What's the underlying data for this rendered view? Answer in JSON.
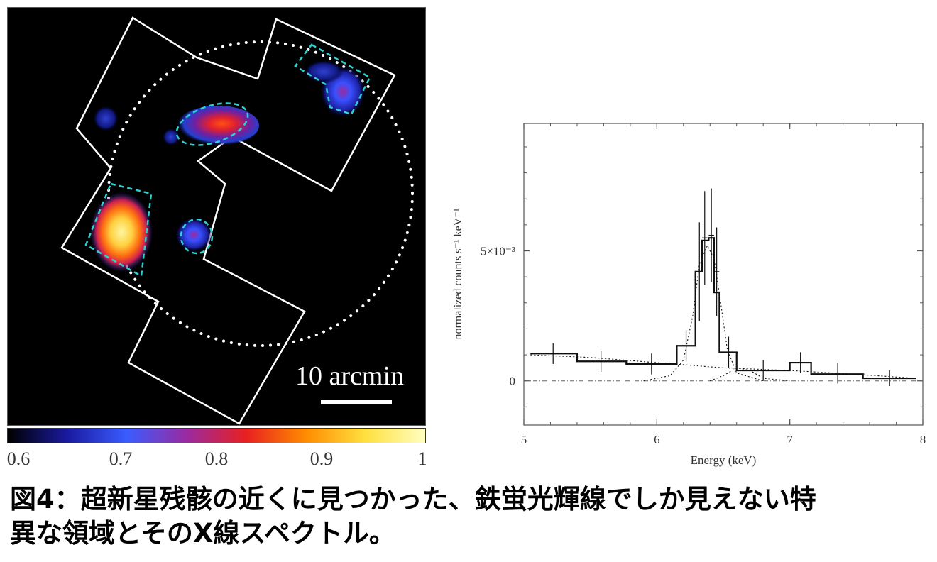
{
  "image_panel": {
    "scale_label": "10 arcmin",
    "colorbar": {
      "ticks": [
        "0.6",
        "0.7",
        "0.8",
        "0.9",
        "1"
      ],
      "colors": [
        "#000000",
        "#1a1aa0",
        "#3a5cff",
        "#9a2aa0",
        "#e82020",
        "#ff8c00",
        "#ffe040",
        "#ffffc0"
      ]
    },
    "region_color": "#2fd0d0",
    "outline_color": "#ffffff"
  },
  "chart_data": {
    "type": "line",
    "xlabel": "Energy (keV)",
    "ylabel": "normalized counts s⁻¹ keV⁻¹",
    "xlim": [
      5,
      8
    ],
    "ylim": [
      -0.0017,
      0.0099
    ],
    "x_ticks": [
      "5",
      "6",
      "7",
      "8"
    ],
    "y_ticks": [
      "0",
      "5×10⁻³"
    ],
    "y_tick_values": [
      0,
      0.005
    ],
    "grid": false,
    "series": [
      {
        "style": "data-with-errors",
        "points": [
          {
            "x": 5.22,
            "xerr": 0.17,
            "y": 0.00105,
            "yerr": 0.0004
          },
          {
            "x": 5.58,
            "xerr": 0.19,
            "y": 0.00075,
            "yerr": 0.0004
          },
          {
            "x": 5.96,
            "xerr": 0.19,
            "y": 0.00065,
            "yerr": 0.0004
          },
          {
            "x": 6.22,
            "xerr": 0.07,
            "y": 0.00135,
            "yerr": 0.0006
          },
          {
            "x": 6.32,
            "xerr": 0.03,
            "y": 0.0042,
            "yerr": 0.0019
          },
          {
            "x": 6.36,
            "xerr": 0.02,
            "y": 0.0055,
            "yerr": 0.0018
          },
          {
            "x": 6.41,
            "xerr": 0.02,
            "y": 0.0056,
            "yerr": 0.0018
          },
          {
            "x": 6.45,
            "xerr": 0.02,
            "y": 0.0042,
            "yerr": 0.0017
          },
          {
            "x": 6.54,
            "xerr": 0.07,
            "y": 0.0011,
            "yerr": 0.0006
          },
          {
            "x": 6.8,
            "xerr": 0.2,
            "y": 0.0004,
            "yerr": 0.0004
          },
          {
            "x": 7.08,
            "xerr": 0.08,
            "y": 0.0007,
            "yerr": 0.0004
          },
          {
            "x": 7.36,
            "xerr": 0.2,
            "y": 0.0003,
            "yerr": 0.0004
          },
          {
            "x": 7.75,
            "xerr": 0.2,
            "y": 0.0001,
            "yerr": 0.0003
          }
        ]
      },
      {
        "style": "model-total-step",
        "points": [
          [
            5.05,
            0.00105
          ],
          [
            5.4,
            0.00105
          ],
          [
            5.4,
            0.00075
          ],
          [
            5.77,
            0.00075
          ],
          [
            5.77,
            0.00065
          ],
          [
            6.15,
            0.00065
          ],
          [
            6.15,
            0.00135
          ],
          [
            6.29,
            0.00135
          ],
          [
            6.29,
            0.0042
          ],
          [
            6.34,
            0.0042
          ],
          [
            6.34,
            0.0054
          ],
          [
            6.39,
            0.0054
          ],
          [
            6.39,
            0.0055
          ],
          [
            6.43,
            0.0055
          ],
          [
            6.43,
            0.0034
          ],
          [
            6.47,
            0.0034
          ],
          [
            6.47,
            0.0011
          ],
          [
            6.6,
            0.0011
          ],
          [
            6.6,
            0.0004
          ],
          [
            7.0,
            0.0004
          ],
          [
            7.0,
            0.0007
          ],
          [
            7.16,
            0.0007
          ],
          [
            7.16,
            0.00025
          ],
          [
            7.55,
            0.00025
          ],
          [
            7.55,
            0.0001
          ],
          [
            7.95,
            0.0001
          ]
        ]
      },
      {
        "style": "model-continuum-dotted",
        "points": [
          [
            5.05,
            0.001
          ],
          [
            5.5,
            0.0009
          ],
          [
            6.0,
            0.0007
          ],
          [
            6.5,
            0.0005
          ],
          [
            7.0,
            0.0004
          ],
          [
            7.5,
            0.00025
          ],
          [
            7.95,
            0.0001
          ]
        ]
      },
      {
        "style": "model-line-dotted",
        "points": [
          [
            5.9,
            0
          ],
          [
            6.1,
            0.0002
          ],
          [
            6.2,
            0.0008
          ],
          [
            6.27,
            0.0025
          ],
          [
            6.32,
            0.0045
          ],
          [
            6.38,
            0.0052
          ],
          [
            6.43,
            0.0047
          ],
          [
            6.48,
            0.003
          ],
          [
            6.53,
            0.0012
          ],
          [
            6.6,
            0.0003
          ],
          [
            6.8,
            0
          ]
        ]
      },
      {
        "style": "model-line2-dotted",
        "points": [
          [
            6.4,
            0
          ],
          [
            6.5,
            0.0002
          ],
          [
            6.6,
            0.0005
          ],
          [
            6.7,
            0.0004
          ],
          [
            6.8,
            0.0001
          ],
          [
            7.0,
            0
          ]
        ]
      }
    ]
  },
  "caption": {
    "line1": "図4：超新星残骸の近くに見つかった、鉄蛍光輝線でしか見えない特",
    "line2": "異な領域とそのX線スペクトル。"
  }
}
